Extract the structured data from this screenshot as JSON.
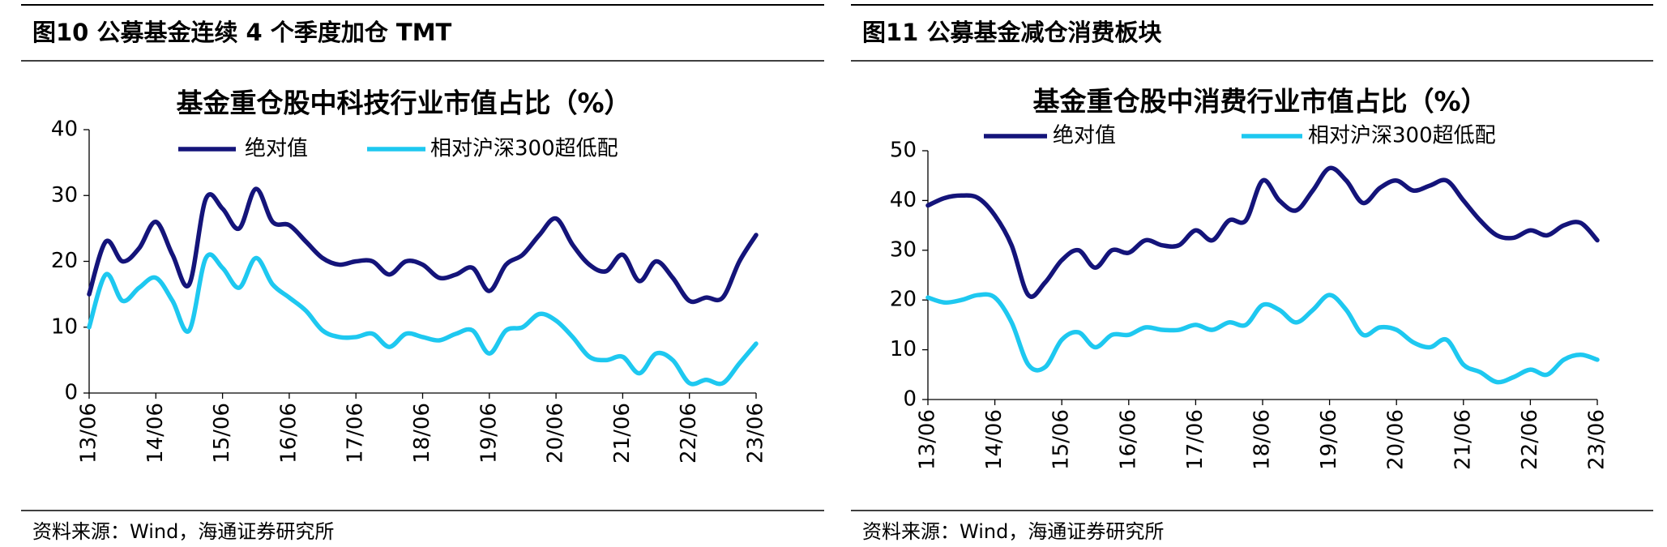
{
  "chart_data": [
    {
      "type": "line",
      "figure_title": "图10 公募基金连续 4 个季度加仓 TMT",
      "title": "基金重仓股中科技行业市值占比（%）",
      "source": "资料来源：Wind，海通证券研究所",
      "categories": [
        "13/06",
        null,
        null,
        null,
        "14/06",
        null,
        null,
        null,
        "15/06",
        null,
        null,
        null,
        "16/06",
        null,
        null,
        null,
        "17/06",
        null,
        null,
        null,
        "18/06",
        null,
        null,
        null,
        "19/06",
        null,
        null,
        null,
        "20/06",
        null,
        null,
        null,
        "21/06",
        null,
        null,
        null,
        "22/06",
        null,
        null,
        null,
        "23/06"
      ],
      "series": [
        {
          "name": "绝对值",
          "color": "#14147a",
          "values": [
            15,
            23,
            20,
            22,
            26,
            21,
            16.5,
            29.5,
            28,
            25,
            31,
            26,
            25.5,
            23,
            20.5,
            19.5,
            20,
            20,
            18,
            20,
            19.5,
            17.5,
            18,
            19,
            15.5,
            19.5,
            21,
            24,
            26.5,
            22.5,
            19.5,
            18.5,
            21,
            17,
            20,
            17.5,
            14,
            14.5,
            14.5,
            20,
            24
          ]
        },
        {
          "name": "相对沪深300超低配",
          "color": "#1ec8f0",
          "values": [
            10,
            18,
            14,
            16,
            17.5,
            14,
            9.5,
            20.5,
            19,
            16,
            20.5,
            16.5,
            14.5,
            12.5,
            9.5,
            8.5,
            8.5,
            9,
            7,
            9,
            8.5,
            8,
            9,
            9.5,
            6,
            9.5,
            10,
            12,
            11,
            8.5,
            5.5,
            5,
            5.5,
            3,
            6,
            5,
            1.5,
            2,
            1.5,
            4.5,
            7.5
          ]
        }
      ],
      "ylim": [
        0,
        40
      ],
      "yticks": [
        0,
        10,
        20,
        30,
        40
      ]
    },
    {
      "type": "line",
      "figure_title": "图11 公募基金减仓消费板块",
      "title": "基金重仓股中消费行业市值占比（%）",
      "source": "资料来源：Wind，海通证券研究所",
      "categories": [
        "13/06",
        null,
        null,
        null,
        "14/06",
        null,
        null,
        null,
        "15/06",
        null,
        null,
        null,
        "16/06",
        null,
        null,
        null,
        "17/06",
        null,
        null,
        null,
        "18/06",
        null,
        null,
        null,
        "19/06",
        null,
        null,
        null,
        "20/06",
        null,
        null,
        null,
        "21/06",
        null,
        null,
        null,
        "22/06",
        null,
        null,
        null,
        "23/06"
      ],
      "series": [
        {
          "name": "绝对值",
          "color": "#14147a",
          "values": [
            39,
            40.5,
            41,
            40.5,
            37,
            31,
            21,
            23.5,
            28,
            30,
            26.5,
            30,
            29.5,
            32,
            31,
            31,
            34,
            32,
            36,
            36,
            44,
            40,
            38,
            42,
            46.5,
            44,
            39.5,
            42.5,
            44,
            42,
            43,
            44,
            40,
            36,
            33,
            32.5,
            34,
            33,
            35,
            35.5,
            32
          ]
        },
        {
          "name": "相对沪深300超低配",
          "color": "#1ec8f0",
          "values": [
            20.5,
            19.5,
            20,
            21,
            20.5,
            15.5,
            7,
            6.5,
            12,
            13.5,
            10.5,
            13,
            13,
            14.5,
            14,
            14,
            15,
            14,
            15.5,
            15,
            19,
            18,
            15.5,
            18,
            21,
            18,
            13,
            14.5,
            14,
            11.5,
            10.5,
            12,
            7,
            5.5,
            3.5,
            4.5,
            6,
            5,
            8,
            9,
            8
          ]
        }
      ],
      "ylim": [
        0,
        50
      ],
      "yticks": [
        0,
        10,
        20,
        30,
        40,
        50
      ]
    }
  ]
}
